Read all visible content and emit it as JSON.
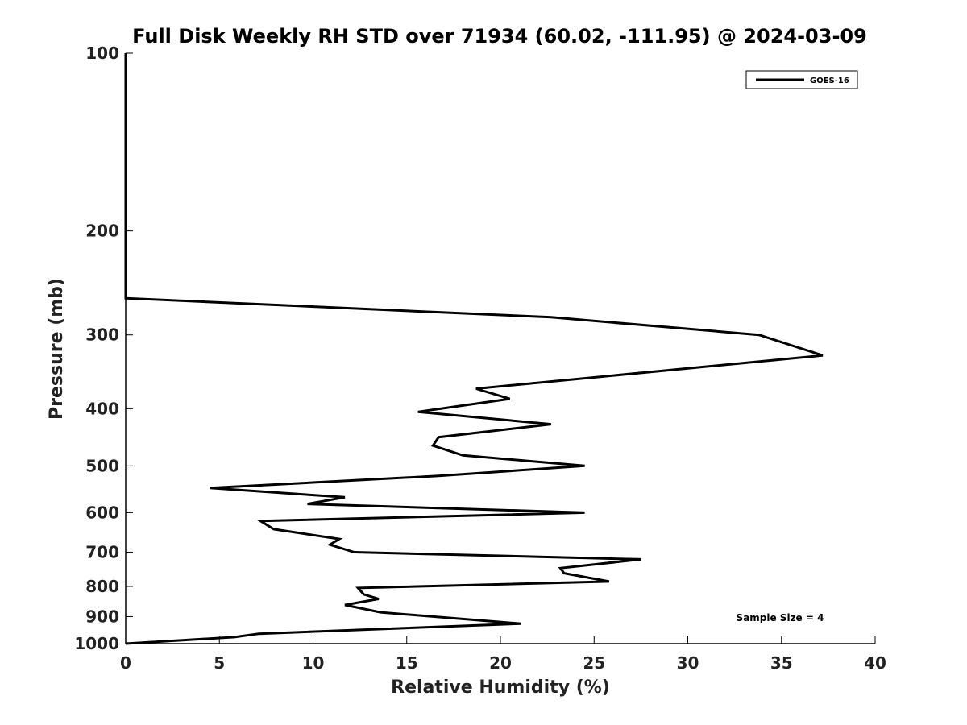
{
  "chart_data": {
    "type": "line",
    "title": "Full Disk Weekly RH STD over 71934 (60.02, -111.95) @ 2024-03-09",
    "xlabel": "Relative Humidity (%)",
    "ylabel": "Pressure (mb)",
    "xlim": [
      0,
      40
    ],
    "ylim": [
      1000,
      100
    ],
    "yscale": "log",
    "xticks": [
      0,
      5,
      10,
      15,
      20,
      25,
      30,
      35,
      40
    ],
    "xtick_labels": [
      "0",
      "5",
      "10",
      "15",
      "20",
      "25",
      "30",
      "35",
      "40"
    ],
    "yticks": [
      100,
      200,
      300,
      400,
      500,
      600,
      700,
      800,
      900,
      1000
    ],
    "ytick_labels": [
      "100",
      "200",
      "300",
      "400",
      "500",
      "600",
      "700",
      "800",
      "900",
      "1000"
    ],
    "legend": {
      "position": "top-right",
      "entries": [
        "GOES-16"
      ]
    },
    "annotation": "Sample Size = 4",
    "series": [
      {
        "name": "GOES-16",
        "color": "#000000",
        "points": [
          {
            "x": 0,
            "p": 100
          },
          {
            "x": 0,
            "p": 200
          },
          {
            "x": 0,
            "p": 260
          },
          {
            "x": 22.7,
            "p": 280
          },
          {
            "x": 33.8,
            "p": 300
          },
          {
            "x": 37.2,
            "p": 325
          },
          {
            "x": 18.7,
            "p": 370
          },
          {
            "x": 20.5,
            "p": 385
          },
          {
            "x": 15.6,
            "p": 405
          },
          {
            "x": 22.7,
            "p": 425
          },
          {
            "x": 16.7,
            "p": 447
          },
          {
            "x": 16.4,
            "p": 462
          },
          {
            "x": 18.0,
            "p": 480
          },
          {
            "x": 24.5,
            "p": 500
          },
          {
            "x": 16.7,
            "p": 520
          },
          {
            "x": 4.5,
            "p": 545
          },
          {
            "x": 11.7,
            "p": 565
          },
          {
            "x": 9.7,
            "p": 580
          },
          {
            "x": 24.5,
            "p": 600
          },
          {
            "x": 7.2,
            "p": 620
          },
          {
            "x": 7.9,
            "p": 640
          },
          {
            "x": 11.4,
            "p": 665
          },
          {
            "x": 10.9,
            "p": 680
          },
          {
            "x": 12.2,
            "p": 700
          },
          {
            "x": 27.5,
            "p": 720
          },
          {
            "x": 23.2,
            "p": 745
          },
          {
            "x": 23.4,
            "p": 760
          },
          {
            "x": 25.8,
            "p": 785
          },
          {
            "x": 12.4,
            "p": 805
          },
          {
            "x": 12.7,
            "p": 825
          },
          {
            "x": 13.5,
            "p": 840
          },
          {
            "x": 11.7,
            "p": 860
          },
          {
            "x": 13.6,
            "p": 885
          },
          {
            "x": 21.1,
            "p": 925
          },
          {
            "x": 7.1,
            "p": 962
          },
          {
            "x": 5.8,
            "p": 975
          },
          {
            "x": 0,
            "p": 1000
          }
        ]
      }
    ]
  }
}
